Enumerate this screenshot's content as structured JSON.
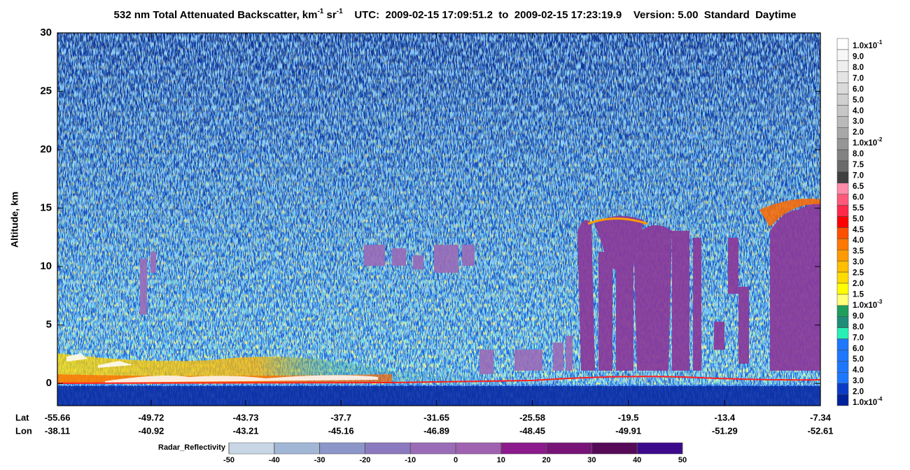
{
  "chart_data": {
    "type": "curtain",
    "title_parts": [
      "532 nm Total Attenuated Backscatter, km",
      "-1",
      " sr",
      "-1"
    ],
    "utc": "UTC:  2009-02-15 17:09:51.2  to  2009-02-15 17:23:19.9",
    "version": "Version: 5.00  Standard  Daytime",
    "ylabel": "Altitude, km",
    "ylim": [
      -1.9,
      30
    ],
    "yticks": [
      0,
      5,
      10,
      15,
      20,
      25,
      30
    ],
    "lat_label": "Lat",
    "lon_label": "Lon",
    "xlim": [
      -55.66,
      -7.34
    ],
    "lat_ticks": [
      -55.66,
      -49.72,
      -43.73,
      -37.7,
      -31.65,
      -25.58,
      -19.5,
      -13.4,
      -7.34
    ],
    "lon_ticks": [
      -38.11,
      -40.92,
      -43.21,
      -45.16,
      -46.89,
      -48.45,
      -49.91,
      -51.29,
      -52.61
    ],
    "colorbar": {
      "labels": [
        {
          "text": "1.0x10",
          "sup": "-1"
        },
        "9.0",
        "8.0",
        "7.0",
        "6.0",
        "5.0",
        "4.0",
        "3.0",
        "2.0",
        {
          "text": "1.0x10",
          "sup": "-2"
        },
        "8.0",
        "7.5",
        "7.0",
        "6.5",
        "6.0",
        "5.5",
        "5.0",
        "4.5",
        "4.0",
        "3.5",
        "3.0",
        "2.5",
        "2.0",
        "1.5",
        {
          "text": "1.0x10",
          "sup": "-3"
        },
        "9.0",
        "8.0",
        "7.0",
        "6.0",
        "5.0",
        "4.0",
        "3.0",
        "2.0",
        {
          "text": "1.0x10",
          "sup": "-4"
        }
      ],
      "colors": [
        "#ffffff",
        "#f7f7f7",
        "#eeeeee",
        "#e4e4e4",
        "#dadada",
        "#d0d0d0",
        "#c6c6c6",
        "#bababa",
        "#a8a8a8",
        "#969696",
        "#828282",
        "#6a6a6a",
        "#404040",
        "#ff8caa",
        "#ff5a7a",
        "#ff2848",
        "#ff0000",
        "#ff5000",
        "#ff7800",
        "#ff9a00",
        "#ffbe00",
        "#ffdc00",
        "#ffff00",
        "#ffff78",
        "#1e9e5a",
        "#1e8c78",
        "#28f0b4",
        "#1e78ff",
        "#1e78ff",
        "#1e78ff",
        "#1e78ff",
        "#0a3cc8",
        "#00229a"
      ]
    },
    "radar": {
      "label": "Radar_Reflectivity",
      "ticks": [
        -50,
        -40,
        -30,
        -20,
        -10,
        0,
        10,
        20,
        30,
        40,
        50
      ],
      "colors": [
        "#c8d6e6",
        "#a2b6d6",
        "#8c96c8",
        "#8c7ac0",
        "#9a6cb8",
        "#a062b0",
        "#8c1a8c",
        "#781478",
        "#560a58",
        "#3c0a8c"
      ]
    }
  }
}
